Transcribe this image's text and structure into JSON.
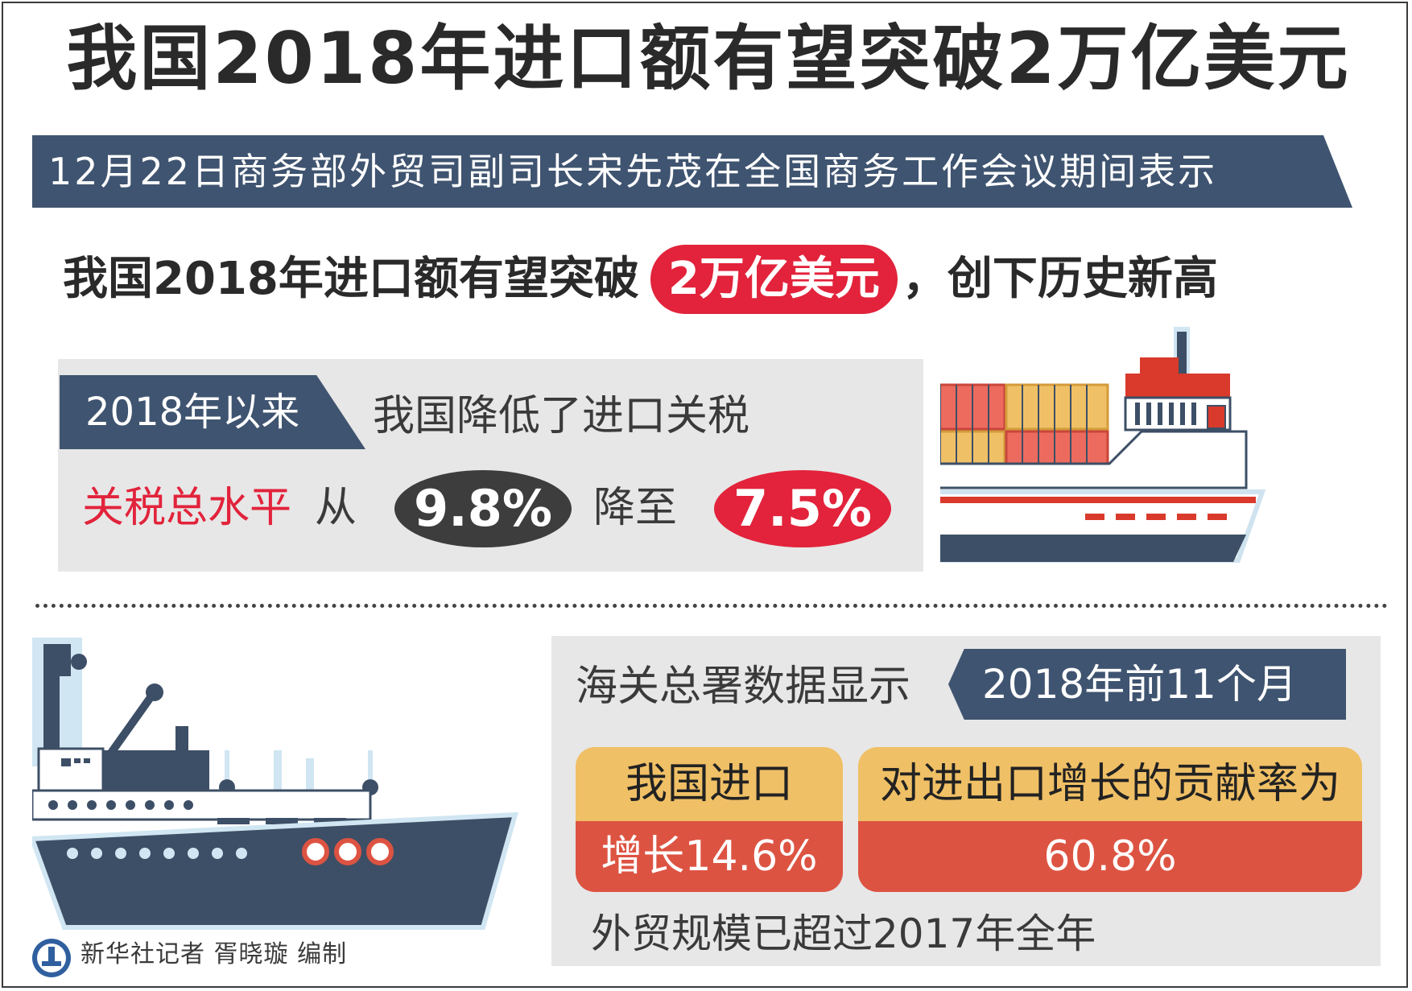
{
  "title": "我国2018年进口额有望突破2万亿美元",
  "subtitle": "12月22日商务部外贸司副司长宋先茂在全国商务工作会议期间表示",
  "headline": {
    "prefix": "我国2018年进口额有望突破",
    "highlight": "2万亿美元",
    "suffix": "，创下历史新高"
  },
  "tariff": {
    "tab": "2018年以来",
    "statement": "我国降低了进口关税",
    "label": "关税总水平",
    "from_word": "从",
    "from_value": "9.8%",
    "to_word": "降至",
    "to_value": "7.5%"
  },
  "customs": {
    "lead": "海关总署数据显示",
    "period": "2018年前11个月",
    "import_card": {
      "top": "我国进口",
      "bottom": "增长14.6%"
    },
    "contribution_card": {
      "top": "对进出口增长的贡献率为",
      "bottom": "60.8%"
    },
    "note": "外贸规模已超过2017年全年"
  },
  "credit": "新华社记者 胥晓璇 编制",
  "colors": {
    "navy": "#3f5470",
    "red": "#e2233b",
    "dark": "#3d3d3d",
    "panel": "#e7e7e7",
    "card_top": "#f0c066",
    "card_bottom": "#dd5342"
  },
  "icons": [
    "cargo-ship-icon",
    "freighter-ship-icon",
    "xinhua-logo-icon"
  ]
}
